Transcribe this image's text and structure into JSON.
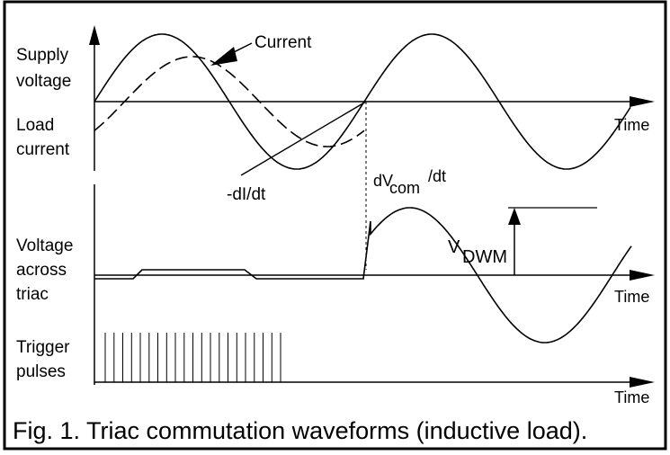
{
  "figure": {
    "labels": {
      "supply_voltage": [
        "Supply",
        "voltage"
      ],
      "load_current": [
        "Load",
        "current"
      ],
      "voltage_across_triac": [
        "Voltage",
        "across",
        "triac"
      ],
      "trigger_pulses": [
        "Trigger",
        "pulses"
      ]
    },
    "time_label": "Time",
    "annotations": {
      "current": "Current",
      "di_dt": "-dI/dt",
      "dv_d": "dV",
      "dv_sub": "com",
      "dv_tail": "/dt",
      "vdwm_v": "V",
      "vdwm_sub": "DWM"
    },
    "caption": "Fig. 1.  Triac commutation waveforms (inductive load)."
  }
}
